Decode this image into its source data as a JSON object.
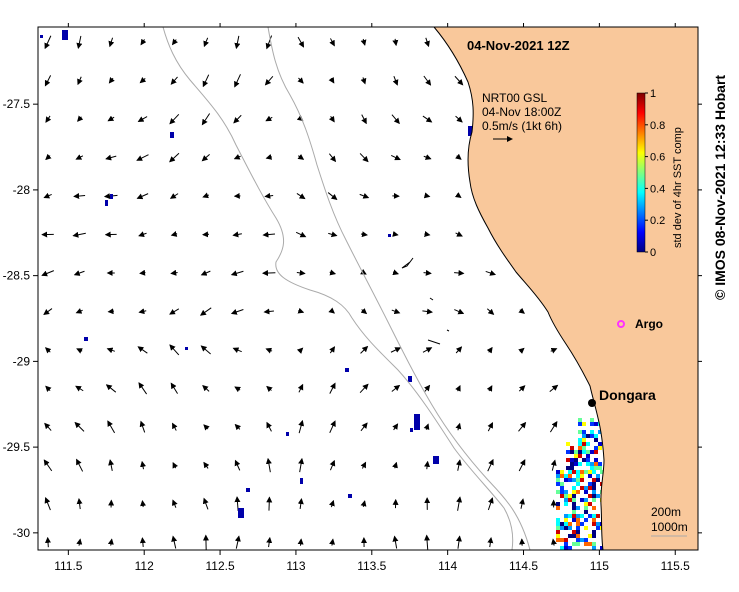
{
  "title": "04-Nov-2021 12Z",
  "vector_legend": {
    "line1": "NRT00 GSL",
    "line2": "04-Nov 18:00Z",
    "line3": "0.5m/s (1kt 6h)"
  },
  "colorbar": {
    "label": "std dev of 4hr SST comp",
    "ticks": [
      "0",
      "0.2",
      "0.4",
      "0.6",
      "0.8",
      "1"
    ],
    "min": 0,
    "max": 1
  },
  "places": {
    "dongara": "Dongara",
    "argo": "Argo"
  },
  "contours": {
    "line1": "200m",
    "line2": "1000m"
  },
  "copyright": "© IMOS 08-Nov-2021 12:33 Hobart",
  "axes": {
    "x_ticks": [
      "111.5",
      "112",
      "112.5",
      "113",
      "113.5",
      "114",
      "114.5",
      "115",
      "115.5"
    ],
    "y_ticks": [
      "-27.5",
      "-28",
      "-28.5",
      "-29",
      "-29.5",
      "-30"
    ],
    "xlim": [
      111.3,
      115.65
    ],
    "ylim": [
      -30.1,
      -27.05
    ]
  },
  "colors": {
    "land": "#f9c89b",
    "bathymetry": "#aaaaaa",
    "argo_marker": "#ff33ff"
  }
}
